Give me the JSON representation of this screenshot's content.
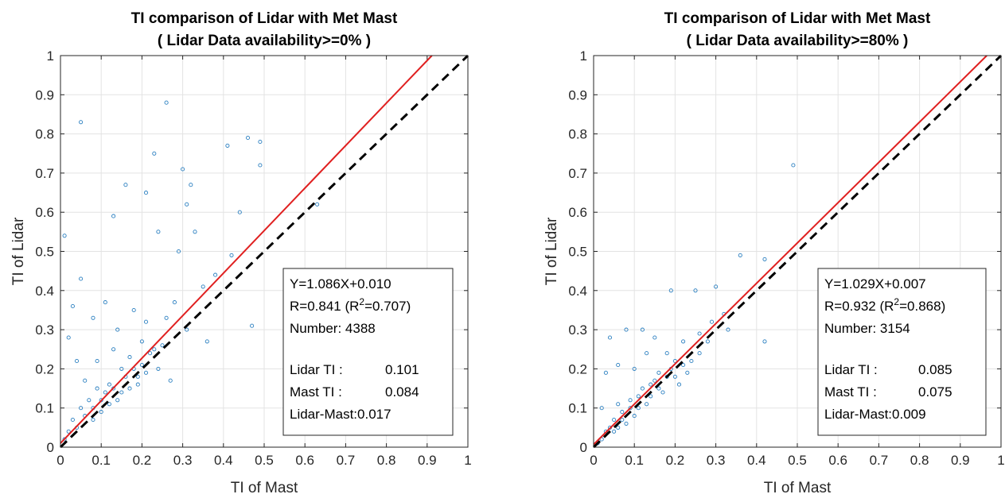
{
  "chart_data": [
    {
      "type": "scatter",
      "title": [
        "TI comparison of Lidar with Met Mast",
        "( Lidar Data availability>=0% )"
      ],
      "xlabel": "TI of Mast",
      "ylabel": "TI of Lidar",
      "xlim": [
        0,
        1
      ],
      "ylim": [
        0,
        1
      ],
      "xticks": [
        "0",
        "0.1",
        "0.2",
        "0.3",
        "0.4",
        "0.5",
        "0.6",
        "0.7",
        "0.8",
        "0.9",
        "1"
      ],
      "yticks": [
        "0",
        "0.1",
        "0.2",
        "0.3",
        "0.4",
        "0.5",
        "0.6",
        "0.7",
        "0.8",
        "0.9",
        "1"
      ],
      "grid": true,
      "colors": {
        "points": "#2a7fc0",
        "fit": "#e02020",
        "reference": "#000000"
      },
      "fit_line": {
        "slope": 1.086,
        "intercept": 0.01
      },
      "reference_line": {
        "slope": 1,
        "intercept": 0
      },
      "points": [
        [
          0.05,
          0.83
        ],
        [
          0.26,
          0.88
        ],
        [
          0.23,
          0.75
        ],
        [
          0.46,
          0.79
        ],
        [
          0.49,
          0.78
        ],
        [
          0.41,
          0.77
        ],
        [
          0.3,
          0.71
        ],
        [
          0.49,
          0.72
        ],
        [
          0.16,
          0.67
        ],
        [
          0.21,
          0.65
        ],
        [
          0.32,
          0.67
        ],
        [
          0.13,
          0.59
        ],
        [
          0.31,
          0.62
        ],
        [
          0.44,
          0.6
        ],
        [
          0.63,
          0.62
        ],
        [
          0.01,
          0.54
        ],
        [
          0.24,
          0.55
        ],
        [
          0.33,
          0.55
        ],
        [
          0.05,
          0.43
        ],
        [
          0.29,
          0.5
        ],
        [
          0.42,
          0.49
        ],
        [
          0.47,
          0.31
        ],
        [
          0.36,
          0.27
        ],
        [
          0.03,
          0.36
        ],
        [
          0.08,
          0.33
        ],
        [
          0.11,
          0.37
        ],
        [
          0.02,
          0.28
        ],
        [
          0.04,
          0.22
        ],
        [
          0.06,
          0.17
        ],
        [
          0.18,
          0.35
        ],
        [
          0.21,
          0.32
        ],
        [
          0.26,
          0.33
        ],
        [
          0.31,
          0.3
        ],
        [
          0.28,
          0.37
        ],
        [
          0.35,
          0.41
        ],
        [
          0.38,
          0.44
        ],
        [
          0.24,
          0.2
        ],
        [
          0.27,
          0.17
        ],
        [
          0.19,
          0.16
        ],
        [
          0.13,
          0.25
        ],
        [
          0.09,
          0.22
        ],
        [
          0.12,
          0.16
        ],
        [
          0.15,
          0.2
        ],
        [
          0.17,
          0.23
        ],
        [
          0.2,
          0.27
        ],
        [
          0.22,
          0.24
        ],
        [
          0.25,
          0.26
        ],
        [
          0.14,
          0.3
        ],
        [
          0.1,
          0.12
        ],
        [
          0.08,
          0.1
        ],
        [
          0.06,
          0.08
        ],
        [
          0.04,
          0.05
        ],
        [
          0.11,
          0.14
        ],
        [
          0.13,
          0.15
        ],
        [
          0.16,
          0.18
        ],
        [
          0.18,
          0.2
        ],
        [
          0.2,
          0.21
        ],
        [
          0.23,
          0.25
        ],
        [
          0.07,
          0.12
        ],
        [
          0.09,
          0.15
        ],
        [
          0.05,
          0.1
        ],
        [
          0.03,
          0.07
        ],
        [
          0.02,
          0.04
        ],
        [
          0.01,
          0.02
        ],
        [
          0.12,
          0.11
        ],
        [
          0.15,
          0.14
        ],
        [
          0.17,
          0.15
        ],
        [
          0.19,
          0.18
        ],
        [
          0.21,
          0.19
        ],
        [
          0.14,
          0.12
        ],
        [
          0.1,
          0.09
        ],
        [
          0.08,
          0.07
        ]
      ],
      "annotation": {
        "lines": [
          {
            "text": "Y=1.086X+0.010"
          },
          {
            "pre": "R=0.841 (R",
            "sup": "2",
            "post": "=0.707)"
          },
          {
            "text": "Number: 4388"
          },
          {
            "text": ""
          },
          {
            "label": "Lidar TI :",
            "value": "0.101"
          },
          {
            "label": "Mast TI :",
            "value": "0.084"
          },
          {
            "text": "Lidar-Mast:0.017"
          }
        ]
      }
    },
    {
      "type": "scatter",
      "title": [
        "TI comparison of Lidar with Met Mast",
        "( Lidar Data availability>=80% )"
      ],
      "xlabel": "TI of Mast",
      "ylabel": "TI of Lidar",
      "xlim": [
        0,
        1
      ],
      "ylim": [
        0,
        1
      ],
      "xticks": [
        "0",
        "0.1",
        "0.2",
        "0.3",
        "0.4",
        "0.5",
        "0.6",
        "0.7",
        "0.8",
        "0.9",
        "1"
      ],
      "yticks": [
        "0",
        "0.1",
        "0.2",
        "0.3",
        "0.4",
        "0.5",
        "0.6",
        "0.7",
        "0.8",
        "0.9",
        "1"
      ],
      "grid": true,
      "colors": {
        "points": "#2a7fc0",
        "fit": "#e02020",
        "reference": "#000000"
      },
      "fit_line": {
        "slope": 1.029,
        "intercept": 0.007
      },
      "reference_line": {
        "slope": 1,
        "intercept": 0
      },
      "points": [
        [
          0.49,
          0.72
        ],
        [
          0.36,
          0.49
        ],
        [
          0.42,
          0.48
        ],
        [
          0.42,
          0.27
        ],
        [
          0.3,
          0.41
        ],
        [
          0.25,
          0.4
        ],
        [
          0.19,
          0.4
        ],
        [
          0.04,
          0.28
        ],
        [
          0.03,
          0.19
        ],
        [
          0.06,
          0.21
        ],
        [
          0.08,
          0.3
        ],
        [
          0.12,
          0.3
        ],
        [
          0.15,
          0.28
        ],
        [
          0.18,
          0.24
        ],
        [
          0.22,
          0.27
        ],
        [
          0.26,
          0.29
        ],
        [
          0.29,
          0.32
        ],
        [
          0.32,
          0.34
        ],
        [
          0.13,
          0.24
        ],
        [
          0.1,
          0.2
        ],
        [
          0.16,
          0.19
        ],
        [
          0.2,
          0.22
        ],
        [
          0.23,
          0.19
        ],
        [
          0.26,
          0.24
        ],
        [
          0.21,
          0.16
        ],
        [
          0.17,
          0.14
        ],
        [
          0.14,
          0.13
        ],
        [
          0.11,
          0.1
        ],
        [
          0.09,
          0.12
        ],
        [
          0.07,
          0.09
        ],
        [
          0.05,
          0.07
        ],
        [
          0.04,
          0.05
        ],
        [
          0.03,
          0.04
        ],
        [
          0.02,
          0.02
        ],
        [
          0.01,
          0.01
        ],
        [
          0.12,
          0.15
        ],
        [
          0.15,
          0.17
        ],
        [
          0.18,
          0.18
        ],
        [
          0.13,
          0.11
        ],
        [
          0.1,
          0.08
        ],
        [
          0.08,
          0.06
        ],
        [
          0.06,
          0.05
        ],
        [
          0.19,
          0.2
        ],
        [
          0.22,
          0.21
        ],
        [
          0.24,
          0.22
        ],
        [
          0.11,
          0.13
        ],
        [
          0.09,
          0.1
        ],
        [
          0.07,
          0.07
        ],
        [
          0.05,
          0.04
        ],
        [
          0.14,
          0.16
        ],
        [
          0.16,
          0.15
        ],
        [
          0.2,
          0.18
        ],
        [
          0.28,
          0.27
        ],
        [
          0.33,
          0.3
        ],
        [
          0.06,
          0.11
        ],
        [
          0.02,
          0.1
        ]
      ],
      "annotation": {
        "lines": [
          {
            "text": "Y=1.029X+0.007"
          },
          {
            "pre": "R=0.932 (R",
            "sup": "2",
            "post": "=0.868)"
          },
          {
            "text": "Number: 3154"
          },
          {
            "text": ""
          },
          {
            "label": "Lidar TI :",
            "value": "0.085"
          },
          {
            "label": "Mast TI :",
            "value": "0.075"
          },
          {
            "text": "Lidar-Mast:0.009"
          }
        ]
      }
    }
  ]
}
